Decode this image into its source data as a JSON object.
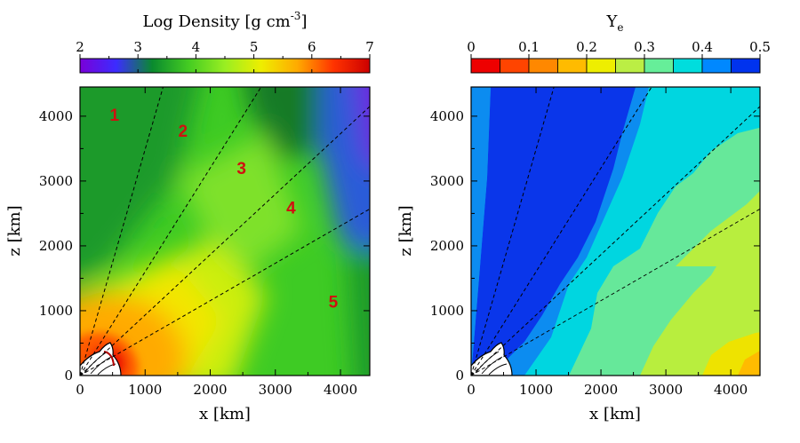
{
  "chart_data": [
    {
      "type": "heatmap",
      "title": "Log Density [g cm",
      "title_superscript": "-3",
      "title_close": "]",
      "xlabel": "x [km]",
      "ylabel": "z [km]",
      "xlim": [
        0,
        4450
      ],
      "ylim": [
        0,
        4450
      ],
      "x_ticks": [
        {
          "value": 0,
          "label": "0"
        },
        {
          "value": 1000,
          "label": "1000"
        },
        {
          "value": 2000,
          "label": "2000"
        },
        {
          "value": 3000,
          "label": "3000"
        },
        {
          "value": 4000,
          "label": "4000"
        }
      ],
      "y_ticks": [
        {
          "value": 0,
          "label": "0"
        },
        {
          "value": 1000,
          "label": "1000"
        },
        {
          "value": 2000,
          "label": "2000"
        },
        {
          "value": 3000,
          "label": "3000"
        },
        {
          "value": 4000,
          "label": "4000"
        }
      ],
      "colorbar": {
        "range": [
          2,
          7
        ],
        "ticks": [
          {
            "value": 2,
            "label": "2"
          },
          {
            "value": 3,
            "label": "3"
          },
          {
            "value": 4,
            "label": "4"
          },
          {
            "value": 5,
            "label": "5"
          },
          {
            "value": 6,
            "label": "6"
          },
          {
            "value": 7,
            "label": "7"
          }
        ],
        "colormap": [
          "#7a00d8",
          "#3c2cff",
          "#0a8a2e",
          "#44cc22",
          "#99ee22",
          "#eeee00",
          "#ffaa00",
          "#ff3300",
          "#cc0000"
        ]
      },
      "ray_angles_deg_from_z": [
        16,
        32,
        47,
        60
      ],
      "region_labels": [
        {
          "label": "1",
          "x": 530,
          "y": 3930
        },
        {
          "label": "2",
          "x": 1580,
          "y": 3680
        },
        {
          "label": "3",
          "x": 2480,
          "y": 3110
        },
        {
          "label": "4",
          "x": 3240,
          "y": 2500
        },
        {
          "label": "5",
          "x": 3890,
          "y": 1050
        }
      ]
    },
    {
      "type": "heatmap",
      "title": "Y",
      "title_subscript": "e",
      "xlabel": "x [km]",
      "ylabel": "z [km]",
      "xlim": [
        0,
        4450
      ],
      "ylim": [
        0,
        4450
      ],
      "x_ticks": [
        {
          "value": 0,
          "label": "0"
        },
        {
          "value": 1000,
          "label": "1000"
        },
        {
          "value": 2000,
          "label": "2000"
        },
        {
          "value": 3000,
          "label": "3000"
        },
        {
          "value": 4000,
          "label": "4000"
        }
      ],
      "y_ticks": [
        {
          "value": 0,
          "label": "0"
        },
        {
          "value": 1000,
          "label": "1000"
        },
        {
          "value": 2000,
          "label": "2000"
        },
        {
          "value": 3000,
          "label": "3000"
        },
        {
          "value": 4000,
          "label": "4000"
        }
      ],
      "colorbar": {
        "range": [
          0,
          0.5
        ],
        "ticks": [
          {
            "value": 0,
            "label": "0"
          },
          {
            "value": 0.1,
            "label": "0.1"
          },
          {
            "value": 0.2,
            "label": "0.2"
          },
          {
            "value": 0.3,
            "label": "0.3"
          },
          {
            "value": 0.4,
            "label": "0.4"
          },
          {
            "value": 0.5,
            "label": "0.5"
          }
        ],
        "bins": [
          "#ee0000",
          "#ff4400",
          "#ff8800",
          "#ffbb00",
          "#eeee00",
          "#bbee44",
          "#66ee99",
          "#00dddd",
          "#0088ff",
          "#0033ee"
        ]
      },
      "ray_angles_deg_from_z": [
        16,
        32,
        47,
        60
      ]
    }
  ]
}
